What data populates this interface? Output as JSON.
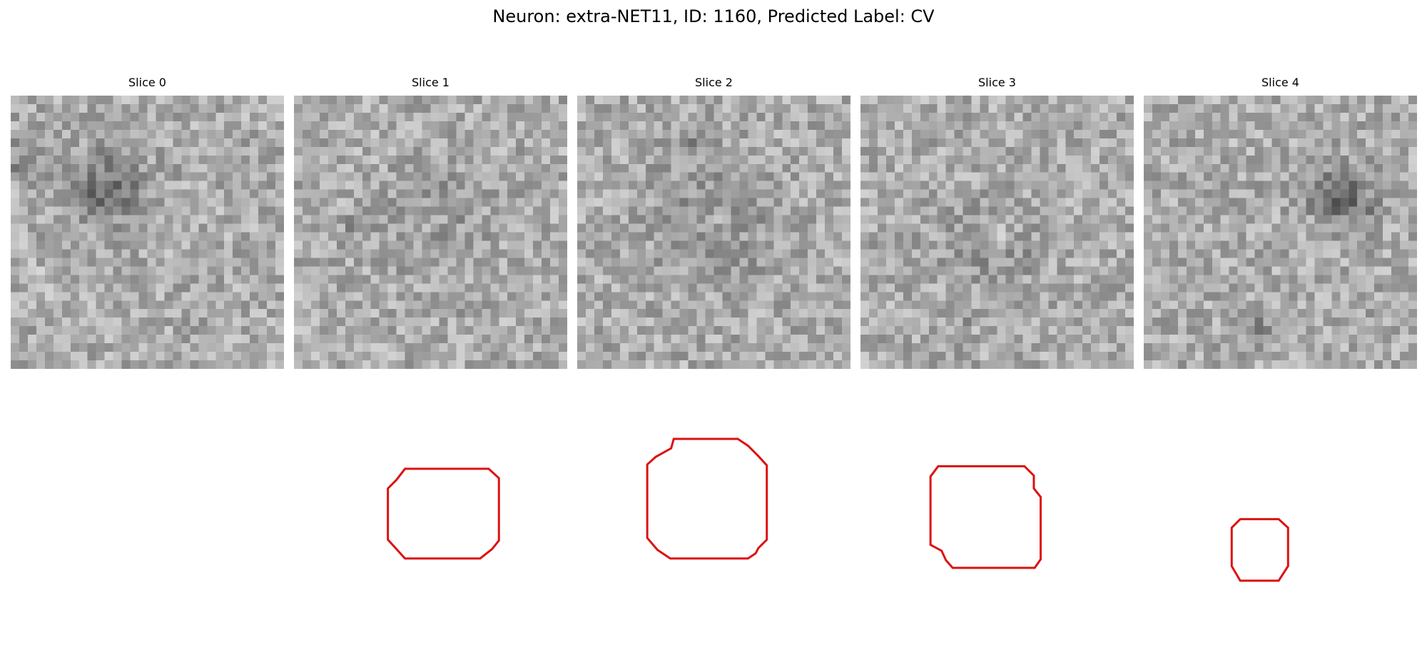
{
  "figure": {
    "title": "Neuron: extra-NET11, ID: 1160, Predicted Label: CV",
    "contour_color": "#dd1111"
  },
  "slices": [
    {
      "label": "Slice 0"
    },
    {
      "label": "Slice 1"
    },
    {
      "label": "Slice 2"
    },
    {
      "label": "Slice 3"
    },
    {
      "label": "Slice 4"
    }
  ]
}
